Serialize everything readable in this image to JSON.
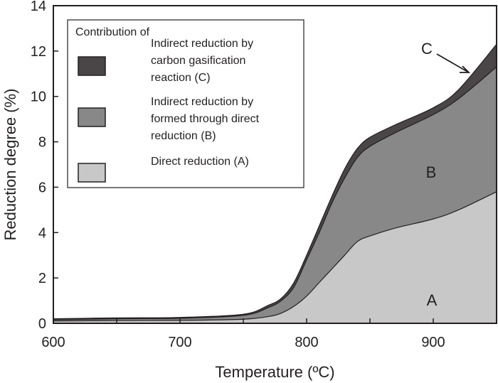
{
  "chart_data": {
    "type": "area",
    "stacked": true,
    "xlabel": "Temperature (ºC)",
    "ylabel": "Reduction degree (%)",
    "xlim": [
      600,
      950
    ],
    "ylim": [
      0,
      14
    ],
    "xticks": [
      600,
      700,
      800,
      900
    ],
    "yticks": [
      0,
      2,
      4,
      6,
      8,
      10,
      12,
      14
    ],
    "x": [
      600,
      650,
      700,
      750,
      770,
      780,
      790,
      800,
      810,
      820,
      830,
      840,
      850,
      870,
      900,
      920,
      950
    ],
    "series": [
      {
        "name": "Direct reduction (A)",
        "label": "A",
        "color": "#c8c8c8",
        "cumulative": [
          0.1,
          0.12,
          0.13,
          0.18,
          0.3,
          0.45,
          0.75,
          1.2,
          1.8,
          2.4,
          3.0,
          3.6,
          3.85,
          4.2,
          4.6,
          5.0,
          5.8
        ]
      },
      {
        "name": "Indirect reduction by formed through direct reduction (B)",
        "label": "B",
        "color": "#888888",
        "cumulative": [
          0.15,
          0.2,
          0.22,
          0.35,
          0.7,
          1.0,
          1.6,
          2.8,
          4.0,
          5.3,
          6.4,
          7.3,
          7.8,
          8.4,
          9.2,
          9.9,
          11.3
        ]
      },
      {
        "name": "Indirect reduction by carbon gasification reaction (C)",
        "label": "C",
        "color": "#4a4546",
        "cumulative": [
          0.2,
          0.24,
          0.26,
          0.4,
          0.8,
          1.1,
          1.8,
          3.0,
          4.3,
          5.6,
          6.8,
          7.7,
          8.2,
          8.75,
          9.5,
          10.3,
          12.3
        ]
      }
    ],
    "legend": {
      "title": "Contribution of",
      "placement": "top-left",
      "entries": [
        [
          "Indirect reduction by",
          "carbon gasification",
          "reaction (C)"
        ],
        [
          "Indirect reduction by",
          "formed through direct",
          "reduction (B)"
        ],
        [
          "Direct reduction (A)"
        ]
      ]
    },
    "annotations": [
      "A",
      "B",
      "C"
    ]
  }
}
